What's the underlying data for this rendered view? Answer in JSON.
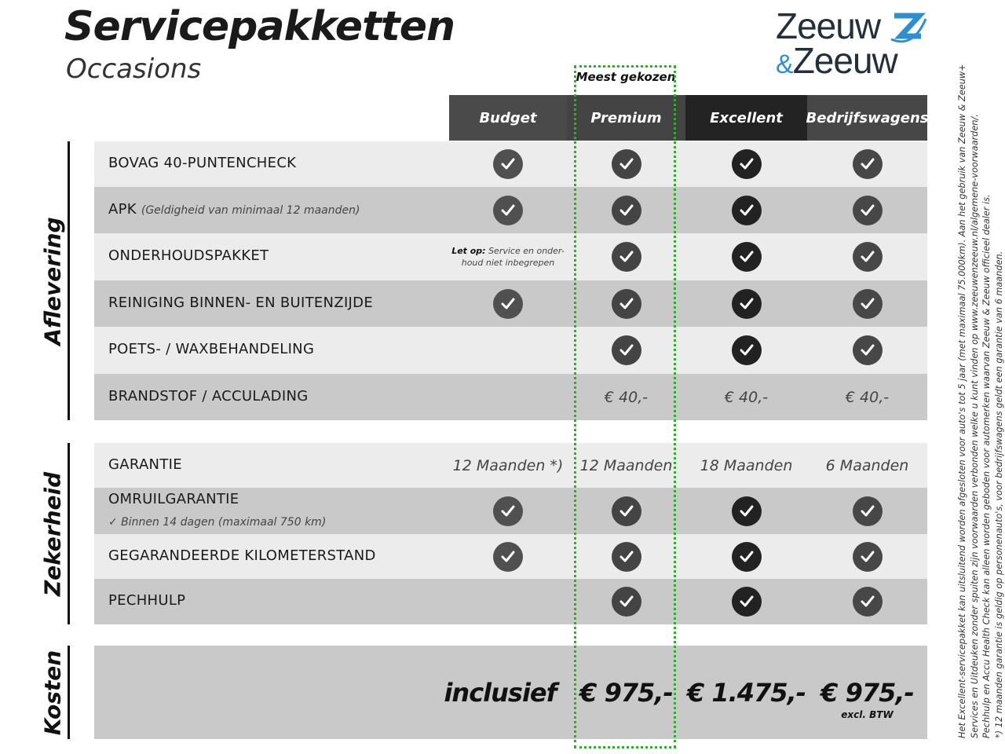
{
  "header": {
    "title": "Servicepakketten",
    "subtitle": "Occasions",
    "most_chosen": "Meest gekozen"
  },
  "logo": {
    "line1": "Zeeuw",
    "amp": "&",
    "line2": "Zeeuw",
    "accent": "#2e8fd0",
    "text_color": "#23303c"
  },
  "columns": [
    {
      "label": "Budget",
      "header_color": "#4a4a4a",
      "check_color": "#505050"
    },
    {
      "label": "Premium",
      "header_color": "#444444",
      "check_color": "#444444"
    },
    {
      "label": "Excellent",
      "header_color": "#232323",
      "check_color": "#222222"
    },
    {
      "label": "Bedrijfswagens",
      "header_color": "#474747",
      "check_color": "#474747"
    }
  ],
  "highlight_color": "#3aa63a",
  "sections": [
    {
      "label": "Aflevering",
      "rows": [
        {
          "label": "BOVAG 40-PUNTENCHECK",
          "cells": [
            "check",
            "check",
            "check",
            "check"
          ]
        },
        {
          "label": "APK",
          "note": "(Geldigheid van minimaal 12 maanden)",
          "cells": [
            "check",
            "check",
            "check",
            "check"
          ]
        },
        {
          "label": "ONDERHOUDSPAKKET",
          "cells": [
            {
              "bold": "Let op:",
              "text": "Service en onder-",
              "text2": "houd niet inbegrepen"
            },
            "check",
            "check",
            "check"
          ]
        },
        {
          "label": "REINIGING BINNEN- EN BUITENZIJDE",
          "cells": [
            "check",
            "check",
            "check",
            "check"
          ]
        },
        {
          "label": "POETS- / WAXBEHANDELING",
          "cells": [
            "",
            "check",
            "check",
            "check"
          ]
        },
        {
          "label": "BRANDSTOF / ACCULADING",
          "cells": [
            "",
            "€ 40,-",
            "€ 40,-",
            "€ 40,-"
          ]
        }
      ]
    },
    {
      "label": "Zekerheid",
      "rows": [
        {
          "label": "GARANTIE",
          "cells": [
            "12 Maanden *)",
            "12 Maanden",
            "18 Maanden",
            "6 Maanden"
          ]
        },
        {
          "label": "OMRUILGARANTIE",
          "sub": "✓   Binnen 14 dagen (maximaal 750 km)",
          "cells": [
            "check",
            "check",
            "check",
            "check"
          ]
        },
        {
          "label": "GEGARANDEERDE KILOMETERSTAND",
          "cells": [
            "check",
            "check",
            "check",
            "check"
          ]
        },
        {
          "label": "PECHHULP",
          "cells": [
            "",
            "check",
            "check",
            "check"
          ]
        }
      ]
    },
    {
      "label": "Kosten",
      "prices": [
        "inclusief",
        "€ 975,-",
        "€ 1.475,-",
        "€ 975,-"
      ],
      "price_note": "excl. BTW"
    }
  ],
  "footnotes": [
    "Het Excellent-servicepakket kan uitsluitend worden afgesloten voor auto's tot 5 jaar (met maximaal 75.000km). Aan het gebruik van Zeeuw & Zeeuw+",
    "Services en Uitdeuken zonder spuiten zijn voorwaarden verbonden welke u kunt vinden op www.zeeuwenzeeuw.nl/algemene-voorwaarden/.",
    "Pechhulp en Accu Health Check kan alleen worden geboden voor automerken waarvan Zeeuw & Zeeuw officieel dealer is.",
    "*) 12 maanden garantie is geldig op personenauto's, voor bedrijfswagens geldt een garantie van 6 maanden."
  ]
}
